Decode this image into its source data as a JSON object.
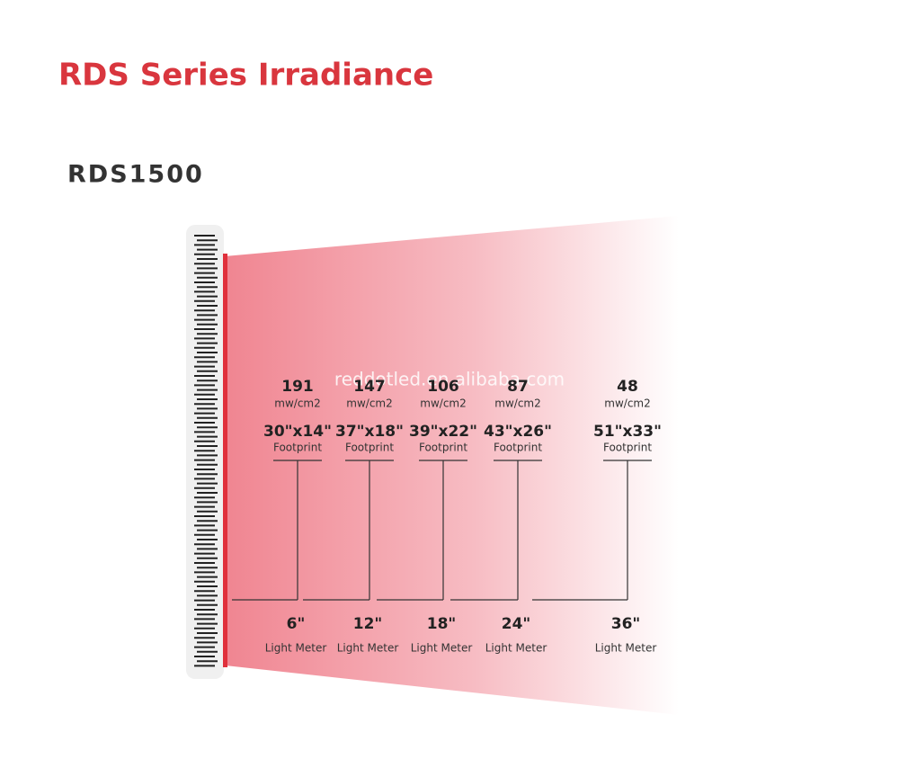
{
  "header": {
    "title": "RDS Series Irradiance",
    "model": "RDS1500",
    "watermark": "reddotled.en.alibaba.com"
  },
  "measurements": [
    {
      "irradiance": 191,
      "unit": "mw/cm2",
      "footprint": "30\"x14\"",
      "footprint_label": "Footprint",
      "distance": "6\"",
      "distance_label": "Light Meter"
    },
    {
      "irradiance": 147,
      "unit": "mw/cm2",
      "footprint": "37\"x18\"",
      "footprint_label": "Footprint",
      "distance": "12\"",
      "distance_label": "Light Meter"
    },
    {
      "irradiance": 106,
      "unit": "mw/cm2",
      "footprint": "39\"x22\"",
      "footprint_label": "Footprint",
      "distance": "18\"",
      "distance_label": "Light Meter"
    },
    {
      "irradiance": 87,
      "unit": "mw/cm2",
      "footprint": "43\"x26\"",
      "footprint_label": "Footprint",
      "distance": "24\"",
      "distance_label": "Light Meter"
    },
    {
      "irradiance": 48,
      "unit": "mw/cm2",
      "footprint": "51\"x33\"",
      "footprint_label": "Footprint",
      "distance": "36\"",
      "distance_label": "Light Meter"
    }
  ]
}
